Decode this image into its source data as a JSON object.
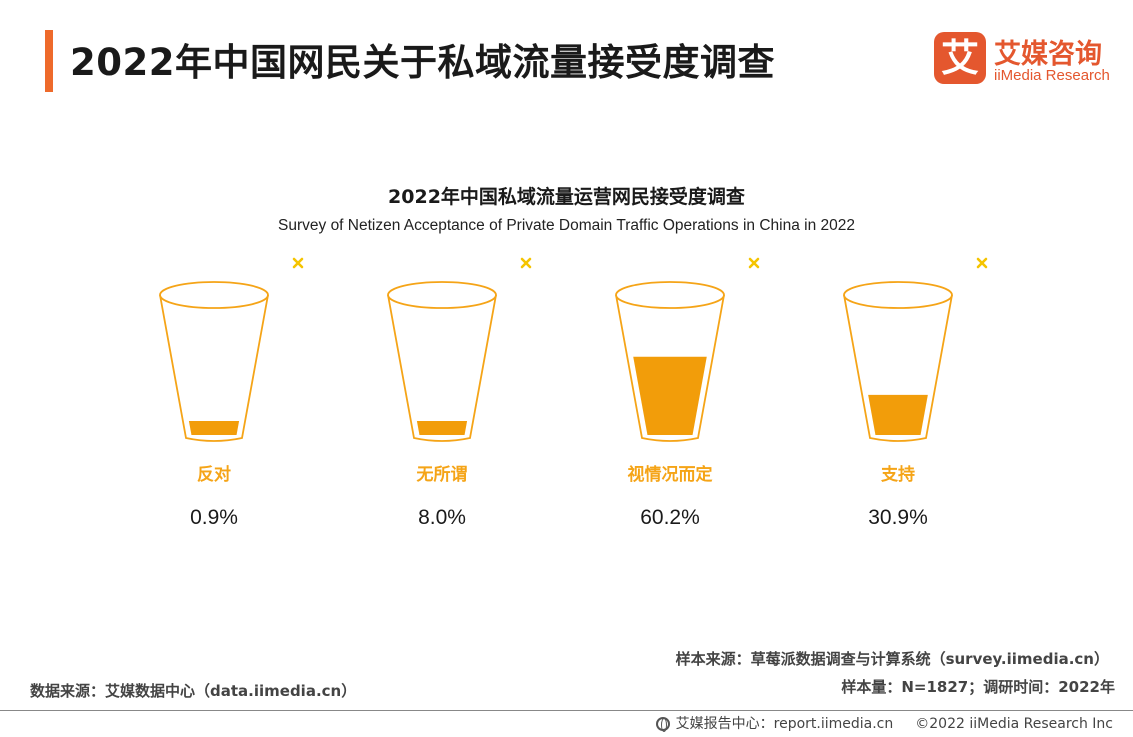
{
  "header": {
    "title": "2022年中国网民关于私域流量接受度调查",
    "logo_mark": "艾",
    "logo_cn": "艾媒咨询",
    "logo_en": "iiMedia Research",
    "accent_color": "#ee6a2b"
  },
  "chart_data": {
    "type": "bar",
    "style": "cups",
    "title": "2022年中国私域流量运营网民接受度调查",
    "subtitle": "Survey of Netizen Acceptance of Private Domain Traffic Operations in China in 2022",
    "categories": [
      "反对",
      "无所谓",
      "视情况而定",
      "支持"
    ],
    "values": [
      0.9,
      8.0,
      60.2,
      30.9
    ],
    "value_labels": [
      "0.9%",
      "8.0%",
      "60.2%",
      "30.9%"
    ],
    "unit": "%",
    "fill_color": "#f29d0a",
    "label_color": "#f5a417",
    "grid": false
  },
  "footer": {
    "data_source": "数据来源：艾媒数据中心（data.iimedia.cn）",
    "sample_source": "样本来源：草莓派数据调查与计算系统（survey.iimedia.cn）",
    "sample_info": "样本量：N=1827；调研时间：2022年",
    "report_center": "艾媒报告中心：report.iimedia.cn",
    "copyright": "©2022  iiMedia Research  Inc"
  }
}
